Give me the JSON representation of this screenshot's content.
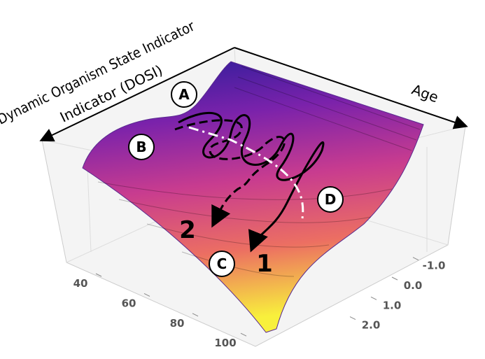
{
  "chart_data": {
    "type": "surface",
    "x_label": "Age",
    "y_label": [
      "Dynamic Organism State Indicator",
      "Indicator (DOSI)"
    ],
    "xticks": [
      40,
      60,
      80,
      100
    ],
    "yticks": [
      {
        "value": -1,
        "label": "-1.0"
      },
      {
        "value": 0,
        "label": "0.0"
      },
      {
        "value": 1,
        "label": "1.0"
      },
      {
        "value": 2,
        "label": "2.0"
      }
    ],
    "annotations": {
      "points": [
        "A",
        "B",
        "C",
        "D"
      ],
      "trajectories": [
        "1",
        "2"
      ]
    },
    "colormap": [
      "#2c1d9a",
      "#7a22ab",
      "#c83c8f",
      "#ec6f62",
      "#f8f03c"
    ]
  }
}
